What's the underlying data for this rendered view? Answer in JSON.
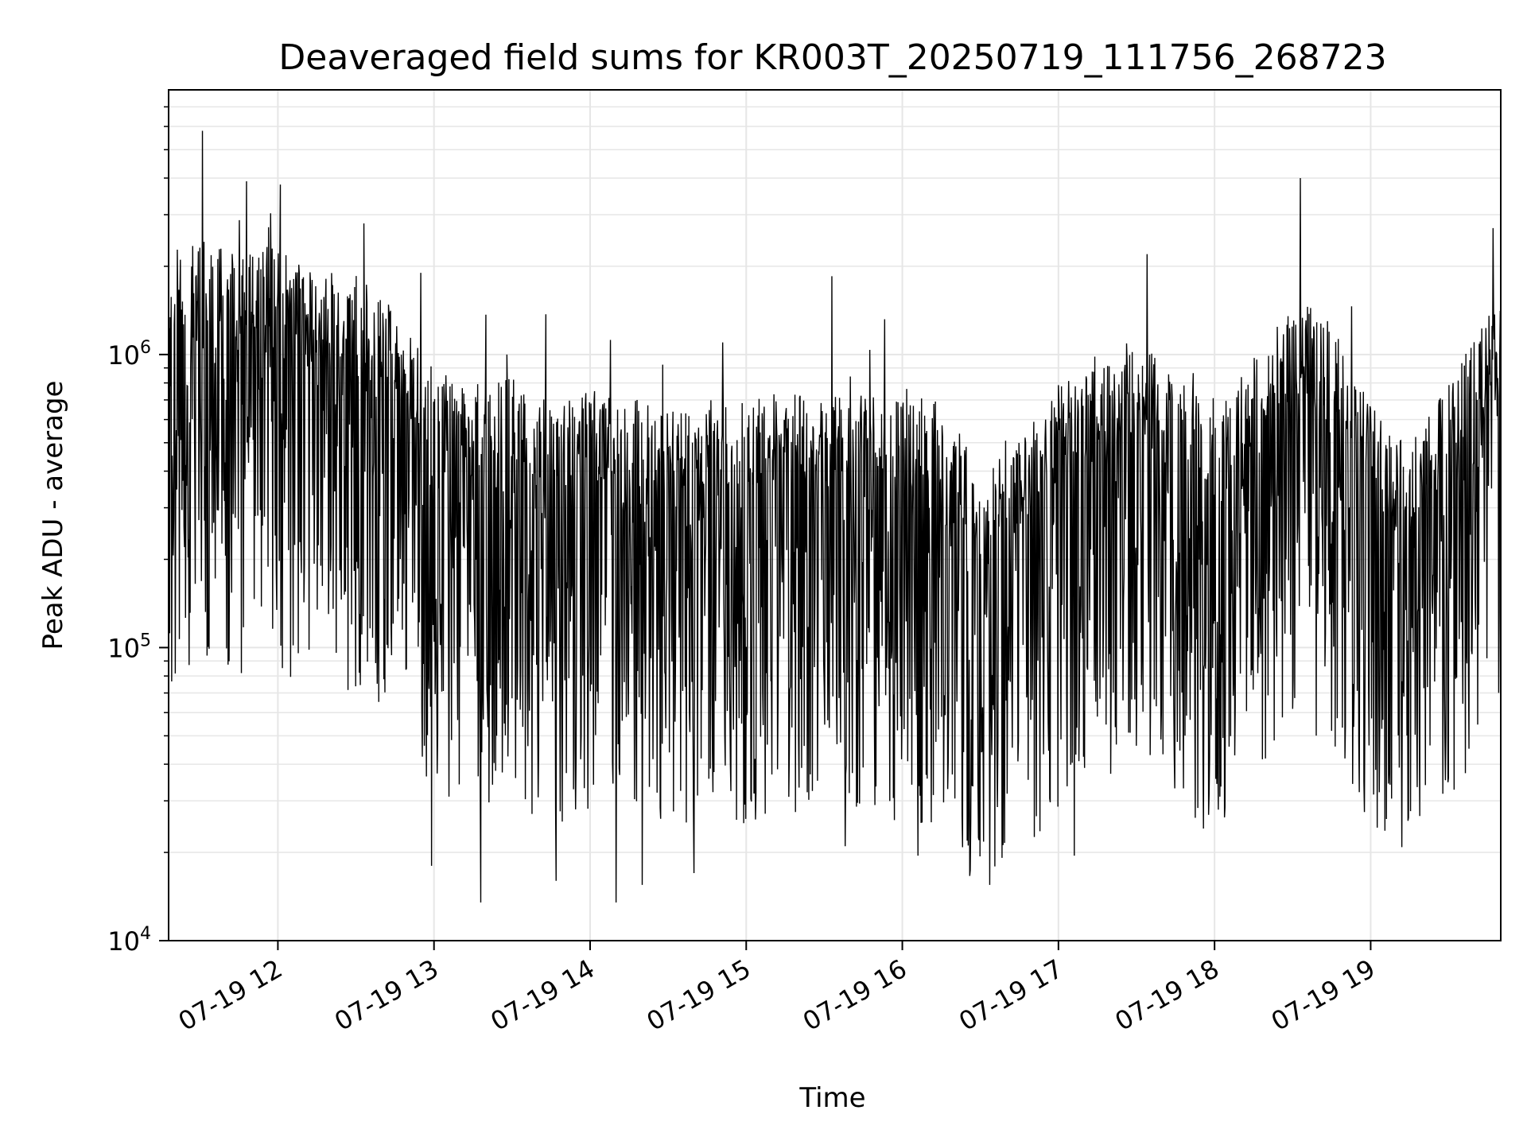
{
  "chart_data": {
    "type": "line",
    "title": "Deaveraged field sums for KR003T_20250719_111756_268723",
    "xlabel": "Time",
    "ylabel": "Peak ADU - average",
    "yscale": "log",
    "ylim": [
      10000,
      8000000
    ],
    "xlim": [
      "2025-07-19 11:18",
      "2025-07-19 19:50"
    ],
    "grid": true,
    "line_color": "#000000",
    "grid_color": "#e6e6e6",
    "x_ticks": [
      {
        "t": "2025-07-19 12:00",
        "label": "07-19 12"
      },
      {
        "t": "2025-07-19 13:00",
        "label": "07-19 13"
      },
      {
        "t": "2025-07-19 14:00",
        "label": "07-19 14"
      },
      {
        "t": "2025-07-19 15:00",
        "label": "07-19 15"
      },
      {
        "t": "2025-07-19 16:00",
        "label": "07-19 16"
      },
      {
        "t": "2025-07-19 17:00",
        "label": "07-19 17"
      },
      {
        "t": "2025-07-19 18:00",
        "label": "07-19 18"
      },
      {
        "t": "2025-07-19 19:00",
        "label": "07-19 19"
      }
    ],
    "y_ticks": [
      {
        "value": 10000,
        "mantissa": "10",
        "exponent": "4"
      },
      {
        "value": 100000,
        "mantissa": "10",
        "exponent": "5"
      },
      {
        "value": 1000000,
        "mantissa": "10",
        "exponent": "6"
      }
    ],
    "series": [
      {
        "points": [
          [
            "2025-07-19 11:18",
            1000000
          ],
          [
            "2025-07-19 11:30",
            1300000
          ],
          [
            "2025-07-19 11:45",
            1100000
          ],
          [
            "2025-07-19 12:00",
            1200000
          ],
          [
            "2025-07-19 12:15",
            950000
          ],
          [
            "2025-07-19 12:30",
            1000000
          ],
          [
            "2025-07-19 12:45",
            700000
          ],
          [
            "2025-07-19 13:00",
            450000
          ],
          [
            "2025-07-19 13:15",
            400000
          ],
          [
            "2025-07-19 13:30",
            420000
          ],
          [
            "2025-07-19 13:45",
            330000
          ],
          [
            "2025-07-19 14:00",
            380000
          ],
          [
            "2025-07-19 14:15",
            360000
          ],
          [
            "2025-07-19 14:30",
            320000
          ],
          [
            "2025-07-19 14:45",
            360000
          ],
          [
            "2025-07-19 15:00",
            350000
          ],
          [
            "2025-07-19 15:15",
            380000
          ],
          [
            "2025-07-19 15:30",
            360000
          ],
          [
            "2025-07-19 15:45",
            370000
          ],
          [
            "2025-07-19 16:00",
            350000
          ],
          [
            "2025-07-19 16:15",
            360000
          ],
          [
            "2025-07-19 16:30",
            200000
          ],
          [
            "2025-07-19 16:45",
            250000
          ],
          [
            "2025-07-19 17:00",
            400000
          ],
          [
            "2025-07-19 17:15",
            450000
          ],
          [
            "2025-07-19 17:30",
            550000
          ],
          [
            "2025-07-19 17:45",
            450000
          ],
          [
            "2025-07-19 18:00",
            300000
          ],
          [
            "2025-07-19 18:15",
            500000
          ],
          [
            "2025-07-19 18:30",
            800000
          ],
          [
            "2025-07-19 18:45",
            650000
          ],
          [
            "2025-07-19 19:00",
            350000
          ],
          [
            "2025-07-19 19:15",
            250000
          ],
          [
            "2025-07-19 19:30",
            400000
          ],
          [
            "2025-07-19 19:50",
            850000
          ]
        ],
        "spike_peaks": [
          [
            "2025-07-19 11:31",
            5800000
          ],
          [
            "2025-07-19 11:48",
            3900000
          ],
          [
            "2025-07-19 12:01",
            3800000
          ],
          [
            "2025-07-19 12:33",
            2800000
          ],
          [
            "2025-07-19 12:55",
            1900000
          ],
          [
            "2025-07-19 13:28",
            1000000
          ],
          [
            "2025-07-19 14:51",
            1100000
          ],
          [
            "2025-07-19 15:33",
            1850000
          ],
          [
            "2025-07-19 17:34",
            2200000
          ],
          [
            "2025-07-19 18:33",
            4000000
          ],
          [
            "2025-07-19 19:47",
            2700000
          ]
        ],
        "dip_troughs": [
          [
            "2025-07-19 12:59",
            18000
          ],
          [
            "2025-07-19 13:18",
            13500
          ],
          [
            "2025-07-19 13:47",
            16000
          ],
          [
            "2025-07-19 14:10",
            13500
          ],
          [
            "2025-07-19 14:20",
            15500
          ],
          [
            "2025-07-19 14:40",
            17000
          ],
          [
            "2025-07-19 15:38",
            21000
          ],
          [
            "2025-07-19 16:06",
            19500
          ],
          [
            "2025-07-19 17:06",
            19500
          ],
          [
            "2025-07-19 18:02",
            31000
          ],
          [
            "2025-07-19 19:06",
            26000
          ]
        ]
      }
    ]
  }
}
